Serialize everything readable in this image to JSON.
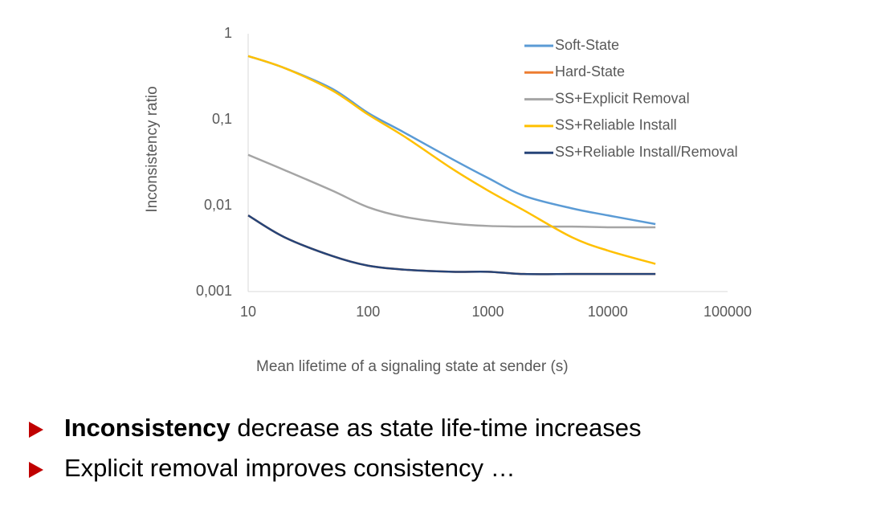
{
  "chart_data": {
    "type": "line",
    "x_label": "Mean lifetime of a signaling state at sender (s)",
    "y_label": "Inconsistency ratio",
    "x": [
      10,
      20,
      50,
      100,
      200,
      500,
      1000,
      2000,
      5000,
      10000,
      25000
    ],
    "series": [
      {
        "name": "Soft-State",
        "color": "#5b9bd5",
        "values": [
          0.55,
          0.4,
          0.23,
          0.12,
          0.071,
          0.035,
          0.021,
          0.013,
          0.0093,
          0.0077,
          0.0061
        ]
      },
      {
        "name": "Hard-State",
        "color": "#ed7d31",
        "values": [
          0.0077,
          0.0043,
          0.0026,
          0.002,
          0.0018,
          0.0017,
          0.0017,
          0.0016,
          0.0016,
          0.0016,
          0.0016
        ]
      },
      {
        "name": "SS+Explicit Removal",
        "color": "#a5a5a5",
        "values": [
          0.039,
          0.026,
          0.015,
          0.0096,
          0.0074,
          0.0062,
          0.0058,
          0.0057,
          0.0057,
          0.0056,
          0.0056
        ]
      },
      {
        "name": "SS+Reliable Install",
        "color": "#ffc000",
        "values": [
          0.55,
          0.4,
          0.22,
          0.115,
          0.064,
          0.027,
          0.015,
          0.0088,
          0.0043,
          0.003,
          0.0021
        ]
      },
      {
        "name": "SS+Reliable Install/Removal",
        "color": "#264478",
        "values": [
          0.0077,
          0.0043,
          0.0026,
          0.002,
          0.0018,
          0.0017,
          0.0017,
          0.0016,
          0.0016,
          0.0016,
          0.0016
        ]
      }
    ],
    "xlim": [
      10,
      100000
    ],
    "xticks": [
      10,
      100,
      1000,
      10000,
      100000
    ],
    "ylim": [
      0.001,
      1
    ],
    "yticks": [
      {
        "value": 0.001,
        "label": "0,001"
      },
      {
        "value": 0.01,
        "label": "0,01"
      },
      {
        "value": 0.1,
        "label": "0,1"
      },
      1
    ],
    "log_x": true,
    "log_y": true,
    "grid": false,
    "legend": "top-right"
  },
  "bullets": [
    {
      "bold": "Inconsistency",
      "text": "decrease as state life-time increases"
    },
    {
      "text": "Explicit removal improves consistency …"
    }
  ]
}
